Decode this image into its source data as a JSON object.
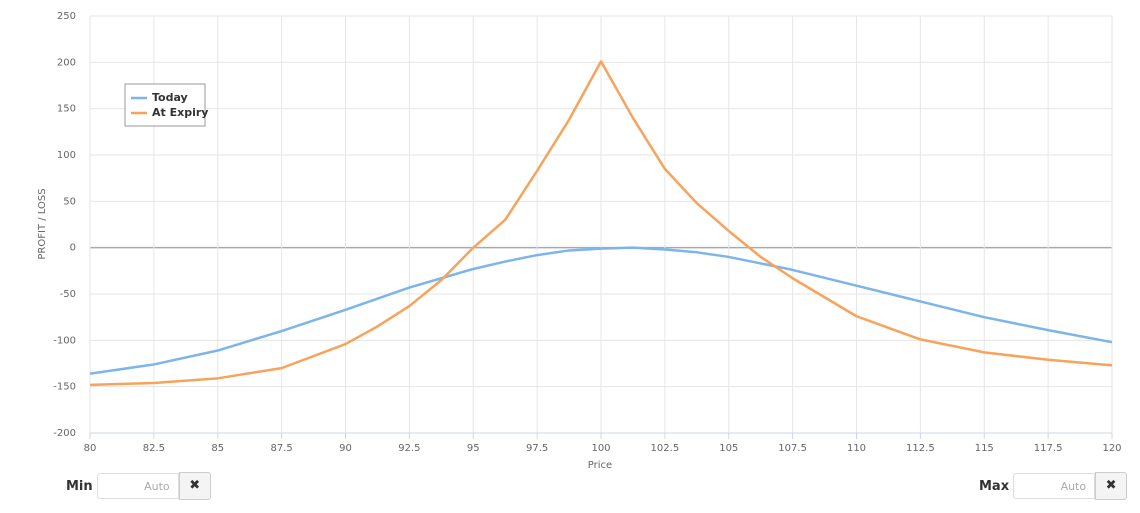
{
  "chart_data": {
    "type": "line",
    "x_label": "Price",
    "y_label": "PROFIT / LOSS",
    "x": [
      80,
      82.5,
      85,
      87.5,
      90,
      91.25,
      92.5,
      93.75,
      95,
      96.25,
      97.5,
      98.75,
      100,
      101.25,
      102.5,
      103.75,
      105,
      106.25,
      107.5,
      110,
      112.5,
      115,
      117.5,
      120
    ],
    "series": [
      {
        "name": "Today",
        "color": "#7cb5ec",
        "values": [
          -136,
          -126,
          -111,
          -90,
          -67,
          -55,
          -43,
          -33,
          -23,
          -15,
          -8,
          -3,
          -1,
          0,
          -2,
          -5,
          -10,
          -17,
          -24,
          -41,
          -58,
          -75,
          -89,
          -102
        ]
      },
      {
        "name": "At Expiry",
        "color": "#f7a35c",
        "values": [
          -148,
          -146,
          -141,
          -130,
          -104,
          -85,
          -63,
          -35,
          0,
          30,
          83,
          138,
          201,
          140,
          85,
          48,
          18,
          -10,
          -33,
          -74,
          -99,
          -113,
          -121,
          -127
        ]
      }
    ],
    "xlim": [
      80,
      120
    ],
    "xticks": [
      80,
      82.5,
      85,
      87.5,
      90,
      92.5,
      95,
      97.5,
      100,
      102.5,
      105,
      107.5,
      110,
      112.5,
      115,
      117.5,
      120
    ],
    "ylim": [
      -200,
      250
    ],
    "yticks": [
      -200,
      -150,
      -100,
      -50,
      0,
      50,
      100,
      150,
      200,
      250
    ],
    "grid": true,
    "legend": "upper left"
  },
  "controls": {
    "min": {
      "label": "Min",
      "placeholder": "Auto"
    },
    "max": {
      "label": "Max",
      "placeholder": "Auto"
    }
  }
}
